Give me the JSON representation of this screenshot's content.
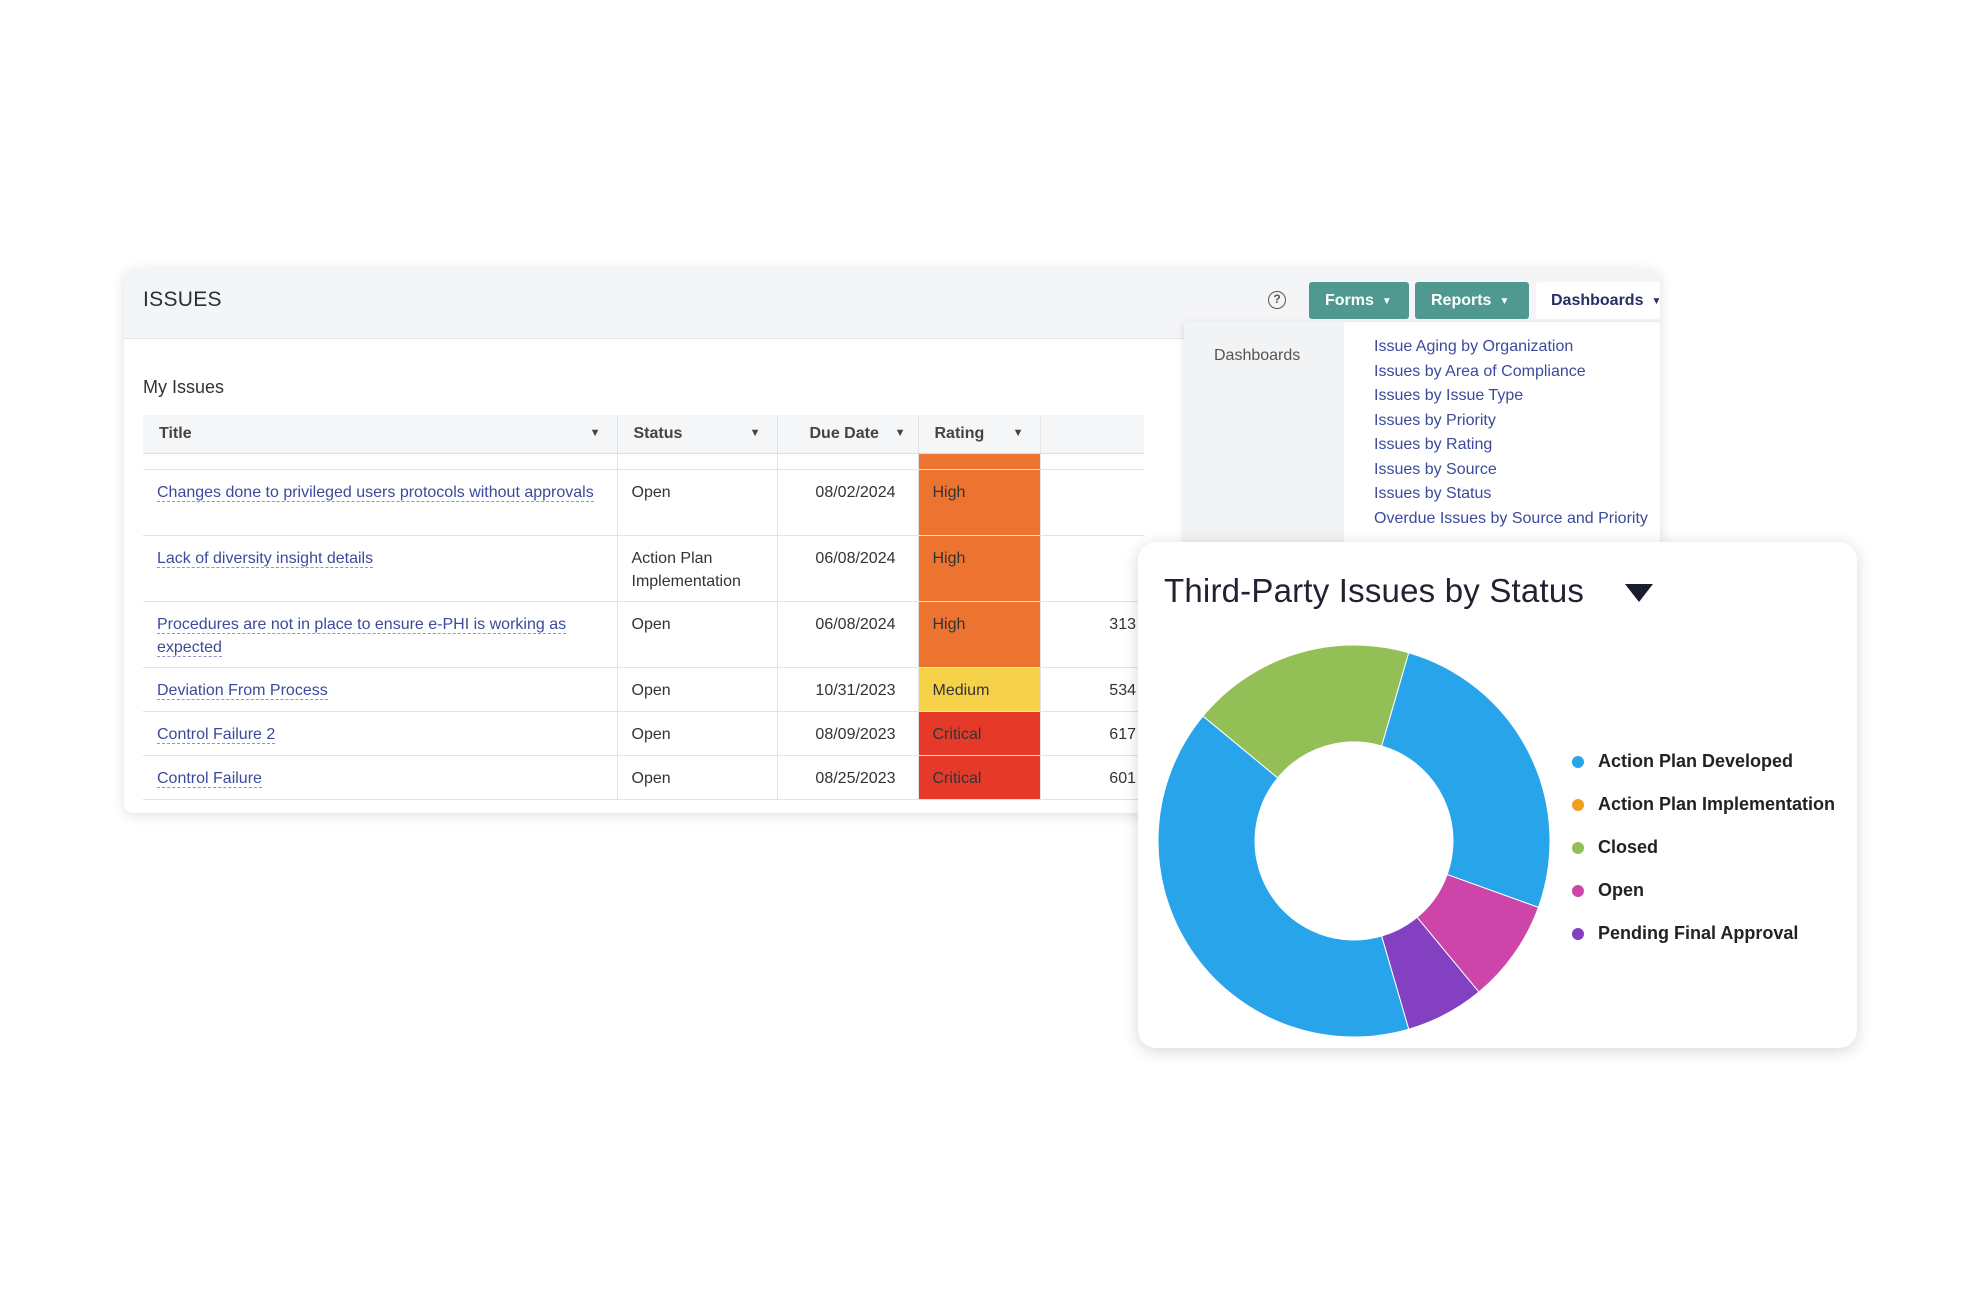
{
  "header": {
    "title": "ISSUES",
    "help_glyph": "?",
    "forms_label": "Forms",
    "reports_label": "Reports",
    "dashboards_label": "Dashboards"
  },
  "panel": {
    "title": "My Issues",
    "columns": {
      "title": "Title",
      "status": "Status",
      "due": "Due Date",
      "rating": "Rating"
    },
    "rows": [
      {
        "title": "Changes done to privileged users protocols without approvals",
        "status": "Open",
        "due": "08/02/2024",
        "rating": "High",
        "rating_color": "#ec7430",
        "num": ""
      },
      {
        "title": "Lack of diversity insight details",
        "status": "Action Plan Implementation",
        "due": "06/08/2024",
        "rating": "High",
        "rating_color": "#ec7430",
        "num": ""
      },
      {
        "title": "Procedures are not in place to ensure e-PHI is working as expected",
        "status": "Open",
        "due": "06/08/2024",
        "rating": "High",
        "rating_color": "#ec7430",
        "num": "313"
      },
      {
        "title": "Deviation From Process",
        "status": "Open",
        "due": "10/31/2023",
        "rating": "Medium",
        "rating_color": "#f6d24a",
        "num": "534"
      },
      {
        "title": "Control Failure 2",
        "status": "Open",
        "due": "08/09/2023",
        "rating": "Critical",
        "rating_color": "#e53a2a",
        "num": "617"
      },
      {
        "title": "Control Failure",
        "status": "Open",
        "due": "08/25/2023",
        "rating": "Critical",
        "rating_color": "#e53a2a",
        "num": "601"
      }
    ]
  },
  "dashboards_menu": {
    "side_label": "Dashboards",
    "items": [
      "Issue Aging by Organization",
      "Issues by Area of Compliance",
      "Issues by Issue Type",
      "Issues by Priority",
      "Issues by Rating",
      "Issues by Source",
      "Issues by Status",
      "Overdue Issues by Source and Priority"
    ]
  },
  "chart": {
    "title": "Third-Party Issues by Status"
  },
  "chart_data": {
    "type": "pie",
    "title": "Third-Party Issues by Status",
    "donut": true,
    "legend_position": "right",
    "series": [
      {
        "name": "Action Plan Developed",
        "value": 56,
        "color": "#27a4ea"
      },
      {
        "name": "Action Plan Implementation",
        "value": 0,
        "color": "#f0a01e"
      },
      {
        "name": "Closed",
        "value": 20,
        "color": "#94bf56"
      },
      {
        "name": "Open",
        "value": 9,
        "color": "#ce45a9"
      },
      {
        "name": "Pending Final Approval",
        "value": 6,
        "color": "#8340c0"
      }
    ],
    "slices_clockwise_from_top": [
      "Closed (tail)",
      "Action Plan Developed",
      "Open",
      "Pending Final Approval",
      "Action Plan Developed",
      "Closed"
    ]
  }
}
